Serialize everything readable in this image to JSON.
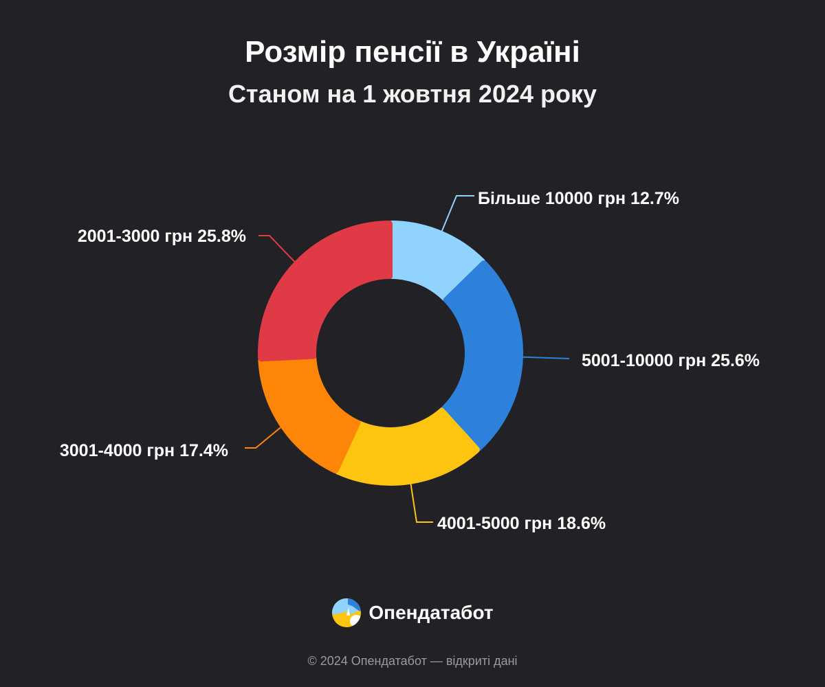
{
  "header": {
    "title": "Розмір пенсії в Україні",
    "subtitle": "Станом на 1 жовтня 2024 року"
  },
  "chart_data": {
    "type": "pie",
    "title": "Розмір пенсії в Україні",
    "subtitle": "Станом на 1 жовтня 2024 року",
    "unit": "%",
    "slices": [
      {
        "category": "Більше 10000 грн",
        "value": 12.7,
        "label": "Більше 10000 грн 12.7%",
        "color": "#8fd3fe"
      },
      {
        "category": "5001-10000 грн",
        "value": 25.6,
        "label": "5001-10000 грн 25.6%",
        "color": "#2e81db"
      },
      {
        "category": "4001-5000 грн",
        "value": 18.6,
        "label": "4001-5000 грн 18.6%",
        "color": "#fdc510"
      },
      {
        "category": "3001-4000 грн",
        "value": 17.4,
        "label": "3001-4000 грн 17.4%",
        "color": "#fd8507"
      },
      {
        "category": "2001-3000 грн",
        "value": 25.8,
        "label": "2001-3000 грн 25.8%",
        "color": "#e03a47"
      }
    ]
  },
  "brand": {
    "name": "Опендатабот",
    "logo_icon": "opendatabot-logo-icon",
    "logo_colors": [
      "#8fd3fe",
      "#2e81db",
      "#fdc510",
      "#ffffff"
    ]
  },
  "footer": {
    "copyright": "© 2024 Опендатабот — відкриті дані"
  },
  "theme": {
    "background": "#222226"
  }
}
